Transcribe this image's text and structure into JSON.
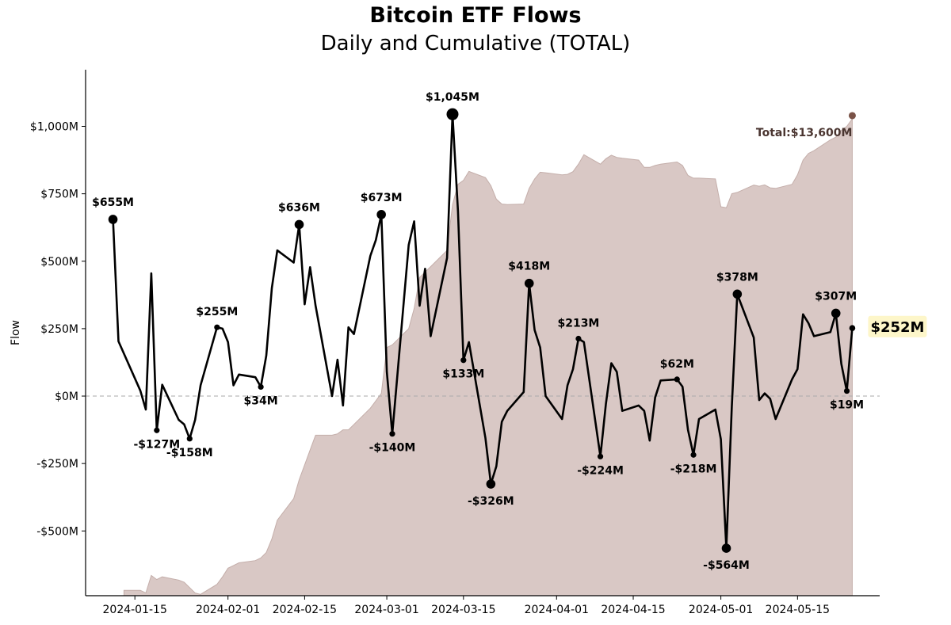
{
  "title": "Bitcoin ETF Flows",
  "subtitle": "Daily and Cumulative (TOTAL)",
  "chart_data": {
    "type": "line",
    "title": "Bitcoin ETF Flows",
    "subtitle": "Daily and Cumulative (TOTAL)",
    "xlabel": "",
    "ylabel": "Flow",
    "ylim": [
      -740,
      1210
    ],
    "xlim": [
      "2024-01-06",
      "2024-05-30"
    ],
    "grid": false,
    "zero_line": "dashed",
    "colors": {
      "line": "#000000",
      "cumulative_fill": "#d9c8c5",
      "cumulative_edge": "#c4aeaa",
      "total_marker": "#7a5247",
      "total_text": "#4a3530",
      "latest_box": "#fdf6c9"
    },
    "yticks": [
      {
        "value": 1000,
        "label": "$1,000M"
      },
      {
        "value": 750,
        "label": "$750M"
      },
      {
        "value": 500,
        "label": "$500M"
      },
      {
        "value": 250,
        "label": "$250M"
      },
      {
        "value": 0,
        "label": "$0M"
      },
      {
        "value": -250,
        "label": "-$250M"
      },
      {
        "value": -500,
        "label": "-$500M"
      }
    ],
    "xticks": [
      {
        "date": "2024-01-15",
        "label": "2024-01-15"
      },
      {
        "date": "2024-02-01",
        "label": "2024-02-01"
      },
      {
        "date": "2024-02-15",
        "label": "2024-02-15"
      },
      {
        "date": "2024-03-01",
        "label": "2024-03-01"
      },
      {
        "date": "2024-03-15",
        "label": "2024-03-15"
      },
      {
        "date": "2024-04-01",
        "label": "2024-04-01"
      },
      {
        "date": "2024-04-15",
        "label": "2024-04-15"
      },
      {
        "date": "2024-05-01",
        "label": "2024-05-01"
      },
      {
        "date": "2024-05-15",
        "label": "2024-05-15"
      }
    ],
    "series": [
      {
        "kind": "daily",
        "points": [
          [
            "2024-01-11",
            655
          ],
          [
            "2024-01-12",
            203
          ],
          [
            "2024-01-16",
            20
          ],
          [
            "2024-01-17",
            -50
          ],
          [
            "2024-01-18",
            455
          ],
          [
            "2024-01-19",
            -127
          ],
          [
            "2024-01-20",
            42
          ],
          [
            "2024-01-23",
            -88
          ],
          [
            "2024-01-24",
            -105
          ],
          [
            "2024-01-25",
            -158
          ],
          [
            "2024-01-26",
            -88
          ],
          [
            "2024-01-27",
            40
          ],
          [
            "2024-01-30",
            255
          ],
          [
            "2024-01-31",
            250
          ],
          [
            "2024-02-01",
            200
          ],
          [
            "2024-02-02",
            40
          ],
          [
            "2024-02-03",
            80
          ],
          [
            "2024-02-06",
            70
          ],
          [
            "2024-02-07",
            34
          ],
          [
            "2024-02-08",
            150
          ],
          [
            "2024-02-09",
            400
          ],
          [
            "2024-02-10",
            540
          ],
          [
            "2024-02-13",
            495
          ],
          [
            "2024-02-14",
            636
          ],
          [
            "2024-02-15",
            340
          ],
          [
            "2024-02-16",
            478
          ],
          [
            "2024-02-17",
            335
          ],
          [
            "2024-02-20",
            0
          ],
          [
            "2024-02-21",
            135
          ],
          [
            "2024-02-22",
            -35
          ],
          [
            "2024-02-23",
            255
          ],
          [
            "2024-02-24",
            230
          ],
          [
            "2024-02-27",
            520
          ],
          [
            "2024-02-28",
            578
          ],
          [
            "2024-02-29",
            673
          ],
          [
            "2024-03-01",
            90
          ],
          [
            "2024-03-02",
            -140
          ],
          [
            "2024-03-05",
            560
          ],
          [
            "2024-03-06",
            648
          ],
          [
            "2024-03-07",
            335
          ],
          [
            "2024-03-08",
            472
          ],
          [
            "2024-03-09",
            222
          ],
          [
            "2024-03-12",
            512
          ],
          [
            "2024-03-13",
            1045
          ],
          [
            "2024-03-14",
            685
          ],
          [
            "2024-03-15",
            133
          ],
          [
            "2024-03-16",
            200
          ],
          [
            "2024-03-19",
            -155
          ],
          [
            "2024-03-20",
            -326
          ],
          [
            "2024-03-21",
            -260
          ],
          [
            "2024-03-22",
            -95
          ],
          [
            "2024-03-23",
            -55
          ],
          [
            "2024-03-26",
            15
          ],
          [
            "2024-03-27",
            418
          ],
          [
            "2024-03-28",
            245
          ],
          [
            "2024-03-29",
            180
          ],
          [
            "2024-03-30",
            0
          ],
          [
            "2024-04-02",
            -85
          ],
          [
            "2024-04-03",
            40
          ],
          [
            "2024-04-04",
            100
          ],
          [
            "2024-04-05",
            213
          ],
          [
            "2024-04-06",
            200
          ],
          [
            "2024-04-09",
            -224
          ],
          [
            "2024-04-10",
            -30
          ],
          [
            "2024-04-11",
            122
          ],
          [
            "2024-04-12",
            90
          ],
          [
            "2024-04-13",
            -55
          ],
          [
            "2024-04-16",
            -35
          ],
          [
            "2024-04-17",
            -55
          ],
          [
            "2024-04-18",
            -165
          ],
          [
            "2024-04-19",
            -5
          ],
          [
            "2024-04-20",
            58
          ],
          [
            "2024-04-23",
            62
          ],
          [
            "2024-04-24",
            35
          ],
          [
            "2024-04-25",
            -125
          ],
          [
            "2024-04-26",
            -218
          ],
          [
            "2024-04-27",
            -85
          ],
          [
            "2024-04-30",
            -50
          ],
          [
            "2024-05-01",
            -160
          ],
          [
            "2024-05-02",
            -564
          ],
          [
            "2024-05-03",
            -40
          ],
          [
            "2024-05-04",
            378
          ],
          [
            "2024-05-07",
            217
          ],
          [
            "2024-05-08",
            -15
          ],
          [
            "2024-05-09",
            10
          ],
          [
            "2024-05-10",
            -10
          ],
          [
            "2024-05-11",
            -85
          ],
          [
            "2024-05-14",
            62
          ],
          [
            "2024-05-15",
            100
          ],
          [
            "2024-05-16",
            303
          ],
          [
            "2024-05-17",
            270
          ],
          [
            "2024-05-18",
            222
          ],
          [
            "2024-05-21",
            237
          ],
          [
            "2024-05-22",
            307
          ],
          [
            "2024-05-23",
            120
          ],
          [
            "2024-05-24",
            19
          ],
          [
            "2024-05-25",
            252
          ]
        ]
      },
      {
        "kind": "cumulative",
        "points": [
          [
            "2024-01-13",
            -720
          ],
          [
            "2024-01-16",
            -720
          ],
          [
            "2024-01-17",
            -730
          ],
          [
            "2024-01-18",
            -665
          ],
          [
            "2024-01-19",
            -680
          ],
          [
            "2024-01-20",
            -670
          ],
          [
            "2024-01-23",
            -682
          ],
          [
            "2024-01-24",
            -690
          ],
          [
            "2024-01-25",
            -710
          ],
          [
            "2024-01-26",
            -730
          ],
          [
            "2024-01-27",
            -735
          ],
          [
            "2024-01-30",
            -698
          ],
          [
            "2024-01-31",
            -670
          ],
          [
            "2024-02-01",
            -638
          ],
          [
            "2024-02-02",
            -628
          ],
          [
            "2024-02-03",
            -618
          ],
          [
            "2024-02-06",
            -610
          ],
          [
            "2024-02-07",
            -600
          ],
          [
            "2024-02-08",
            -580
          ],
          [
            "2024-02-09",
            -530
          ],
          [
            "2024-02-10",
            -460
          ],
          [
            "2024-02-13",
            -380
          ],
          [
            "2024-02-14",
            -310
          ],
          [
            "2024-02-15",
            -255
          ],
          [
            "2024-02-16",
            -200
          ],
          [
            "2024-02-17",
            -145
          ],
          [
            "2024-02-20",
            -145
          ],
          [
            "2024-02-21",
            -140
          ],
          [
            "2024-02-22",
            -125
          ],
          [
            "2024-02-23",
            -125
          ],
          [
            "2024-02-24",
            -105
          ],
          [
            "2024-02-27",
            -45
          ],
          [
            "2024-02-28",
            -18
          ],
          [
            "2024-02-29",
            10
          ],
          [
            "2024-03-01",
            180
          ],
          [
            "2024-03-02",
            190
          ],
          [
            "2024-03-05",
            250
          ],
          [
            "2024-03-06",
            325
          ],
          [
            "2024-03-07",
            440
          ],
          [
            "2024-03-08",
            460
          ],
          [
            "2024-03-09",
            480
          ],
          [
            "2024-03-12",
            540
          ],
          [
            "2024-03-13",
            710
          ],
          [
            "2024-03-14",
            785
          ],
          [
            "2024-03-15",
            800
          ],
          [
            "2024-03-16",
            833
          ],
          [
            "2024-03-19",
            810
          ],
          [
            "2024-03-20",
            780
          ],
          [
            "2024-03-21",
            730
          ],
          [
            "2024-03-22",
            712
          ],
          [
            "2024-03-23",
            710
          ],
          [
            "2024-03-26",
            712
          ],
          [
            "2024-03-27",
            770
          ],
          [
            "2024-03-28",
            805
          ],
          [
            "2024-03-29",
            830
          ],
          [
            "2024-03-30",
            828
          ],
          [
            "2024-04-02",
            820
          ],
          [
            "2024-04-03",
            822
          ],
          [
            "2024-04-04",
            832
          ],
          [
            "2024-04-05",
            860
          ],
          [
            "2024-04-06",
            895
          ],
          [
            "2024-04-09",
            860
          ],
          [
            "2024-04-10",
            880
          ],
          [
            "2024-04-11",
            893
          ],
          [
            "2024-04-12",
            885
          ],
          [
            "2024-04-13",
            882
          ],
          [
            "2024-04-16",
            875
          ],
          [
            "2024-04-17",
            848
          ],
          [
            "2024-04-18",
            848
          ],
          [
            "2024-04-19",
            855
          ],
          [
            "2024-04-20",
            860
          ],
          [
            "2024-04-23",
            868
          ],
          [
            "2024-04-24",
            855
          ],
          [
            "2024-04-25",
            818
          ],
          [
            "2024-04-26",
            808
          ],
          [
            "2024-04-27",
            808
          ],
          [
            "2024-04-30",
            805
          ],
          [
            "2024-05-01",
            702
          ],
          [
            "2024-05-02",
            698
          ],
          [
            "2024-05-03",
            750
          ],
          [
            "2024-05-04",
            755
          ],
          [
            "2024-05-07",
            782
          ],
          [
            "2024-05-08",
            778
          ],
          [
            "2024-05-09",
            783
          ],
          [
            "2024-05-10",
            772
          ],
          [
            "2024-05-11",
            770
          ],
          [
            "2024-05-14",
            785
          ],
          [
            "2024-05-15",
            820
          ],
          [
            "2024-05-16",
            875
          ],
          [
            "2024-05-17",
            900
          ],
          [
            "2024-05-18",
            910
          ],
          [
            "2024-05-21",
            950
          ],
          [
            "2024-05-22",
            960
          ],
          [
            "2024-05-23",
            985
          ],
          [
            "2024-05-24",
            1000
          ],
          [
            "2024-05-25",
            1028
          ]
        ]
      }
    ],
    "annotations": [
      {
        "date": "2024-01-11",
        "value": 655,
        "label": "$655M",
        "pos": "above",
        "big": true
      },
      {
        "date": "2024-01-19",
        "value": -127,
        "label": "-$127M",
        "pos": "below",
        "big": false
      },
      {
        "date": "2024-01-25",
        "value": -158,
        "label": "-$158M",
        "pos": "below",
        "big": false
      },
      {
        "date": "2024-01-30",
        "value": 255,
        "label": "$255M",
        "pos": "above",
        "big": false
      },
      {
        "date": "2024-02-07",
        "value": 34,
        "label": "$34M",
        "pos": "below",
        "big": false
      },
      {
        "date": "2024-02-14",
        "value": 636,
        "label": "$636M",
        "pos": "above",
        "big": true
      },
      {
        "date": "2024-02-29",
        "value": 673,
        "label": "$673M",
        "pos": "above",
        "big": true
      },
      {
        "date": "2024-03-02",
        "value": -140,
        "label": "-$140M",
        "pos": "below",
        "big": false
      },
      {
        "date": "2024-03-13",
        "value": 1045,
        "label": "$1,045M",
        "pos": "above",
        "big": true
      },
      {
        "date": "2024-03-15",
        "value": 133,
        "label": "$133M",
        "pos": "below",
        "big": false
      },
      {
        "date": "2024-03-20",
        "value": -326,
        "label": "-$326M",
        "pos": "below",
        "big": true
      },
      {
        "date": "2024-03-27",
        "value": 418,
        "label": "$418M",
        "pos": "above",
        "big": true
      },
      {
        "date": "2024-04-05",
        "value": 213,
        "label": "$213M",
        "pos": "above",
        "big": false
      },
      {
        "date": "2024-04-09",
        "value": -224,
        "label": "-$224M",
        "pos": "below",
        "big": false
      },
      {
        "date": "2024-04-23",
        "value": 62,
        "label": "$62M",
        "pos": "above",
        "big": false
      },
      {
        "date": "2024-04-26",
        "value": -218,
        "label": "-$218M",
        "pos": "below",
        "big": false
      },
      {
        "date": "2024-05-02",
        "value": -564,
        "label": "-$564M",
        "pos": "below",
        "big": true
      },
      {
        "date": "2024-05-04",
        "value": 378,
        "label": "$378M",
        "pos": "above",
        "big": true
      },
      {
        "date": "2024-05-22",
        "value": 307,
        "label": "$307M",
        "pos": "above",
        "big": true
      },
      {
        "date": "2024-05-24",
        "value": 19,
        "label": "$19M",
        "pos": "below",
        "big": false
      }
    ],
    "total_label": "Total:$13,600M",
    "total_marker_date": "2024-05-25",
    "latest_label": "$252M",
    "latest_date": "2024-05-25",
    "latest_value": 252
  }
}
